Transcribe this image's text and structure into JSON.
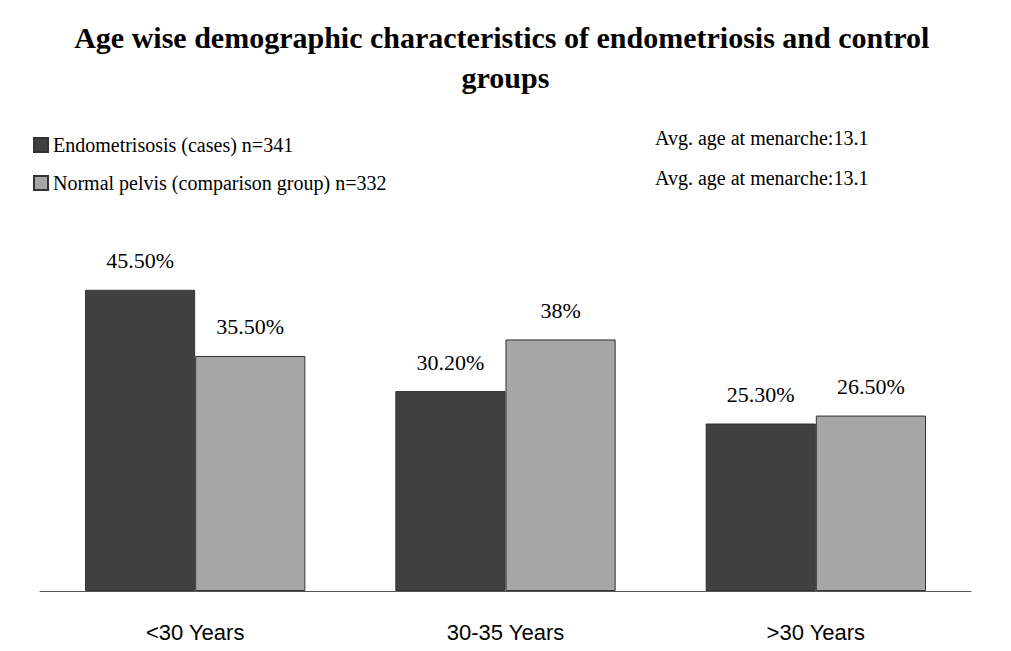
{
  "chart_data": {
    "type": "bar",
    "title": "Age wise demographic characteristics of endometriosis and control groups",
    "categories": [
      "<30 Years",
      "30-35 Years",
      ">30 Years"
    ],
    "series": [
      {
        "name": "Endometrisosis (cases) n=341",
        "color": "#404040",
        "values": [
          45.5,
          30.2,
          25.3
        ],
        "value_labels": [
          "45.50%",
          "30.20%",
          "25.30%"
        ]
      },
      {
        "name": "Normal pelvis (comparison group) n=332",
        "color": "#a6a6a6",
        "values": [
          35.5,
          38,
          26.5
        ],
        "value_labels": [
          "35.50%",
          "38%",
          "26.50%"
        ]
      }
    ],
    "annotations": [
      "Avg. age at menarche:13.1",
      "Avg. age at menarche:13.1"
    ],
    "ylim": [
      0,
      50
    ],
    "data_labels": true,
    "tick_labels": "x",
    "legend": "upper left",
    "grid": false
  }
}
